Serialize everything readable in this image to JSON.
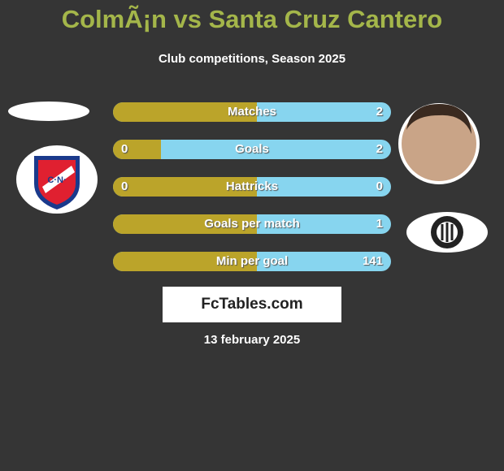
{
  "header": {
    "title": "ColmÃ¡n vs Santa Cruz Cantero",
    "subtitle": "Club competitions, Season 2025"
  },
  "rows": [
    {
      "label": "Matches",
      "right": 2
    },
    {
      "label": "Goals",
      "left": 0,
      "right": 2
    },
    {
      "label": "Hattricks",
      "left": 0,
      "right": 0
    },
    {
      "label": "Goals per match",
      "right": 1
    },
    {
      "label": "Min per goal",
      "right": 141
    }
  ],
  "footer": {
    "brand": "FcTables.com",
    "date": "13 february 2025"
  }
}
